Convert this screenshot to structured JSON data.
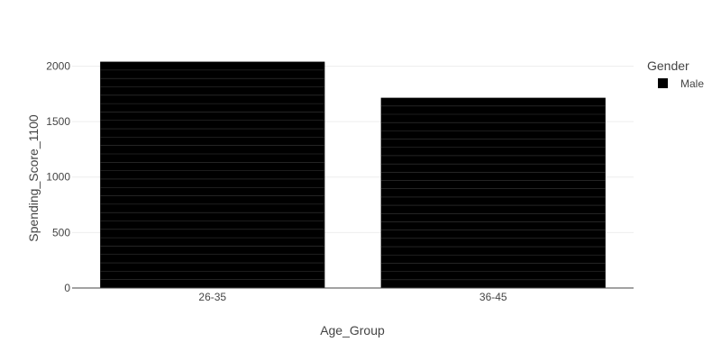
{
  "chart_data": {
    "type": "bar",
    "categories": [
      "26-35",
      "36-45"
    ],
    "series": [
      {
        "name": "Male",
        "color": "#000000",
        "values": [
          2040,
          1715
        ]
      }
    ],
    "xlabel": "Age_Group",
    "ylabel": "Spending_Score_1100",
    "ylim": [
      0,
      2150
    ],
    "yticks": [
      0,
      500,
      1000,
      1500,
      2000
    ],
    "ytick_labels": [
      "0",
      "500",
      "1000",
      "1500",
      "2000"
    ],
    "grid": true,
    "legend": {
      "title": "Gender",
      "placement": "top-right"
    }
  }
}
